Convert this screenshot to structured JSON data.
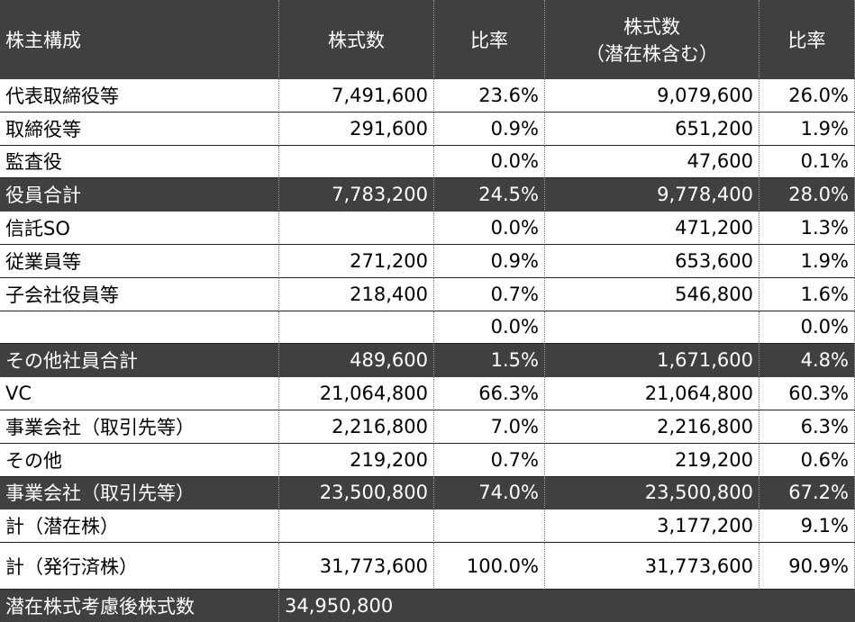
{
  "header": [
    "株主構成",
    "株式数",
    "比率",
    [
      "株式数",
      "（潜在株含む）"
    ],
    "比率"
  ],
  "rows": [
    {
      "cells": [
        "代表取締役等",
        "7,491,600",
        "23.6%",
        "9,079,600",
        "26.0%"
      ],
      "total": false
    },
    {
      "cells": [
        "取締役等",
        "291,600",
        "0.9%",
        "651,200",
        "1.9%"
      ],
      "total": false
    },
    {
      "cells": [
        "監査役",
        null,
        "0.0%",
        "47,600",
        "0.1%"
      ],
      "total": false
    },
    {
      "cells": [
        "役員合計",
        "7,783,200",
        "24.5%",
        "9,778,400",
        "28.0%"
      ],
      "total": true
    },
    {
      "cells": [
        "信託SO",
        null,
        "0.0%",
        "471,200",
        "1.3%"
      ],
      "total": false
    },
    {
      "cells": [
        "従業員等",
        "271,200",
        "0.9%",
        "653,600",
        "1.9%"
      ],
      "total": false
    },
    {
      "cells": [
        "子会社役員等",
        "218,400",
        "0.7%",
        "546,800",
        "1.6%"
      ],
      "total": false
    },
    {
      "cells": [
        null,
        null,
        "0.0%",
        null,
        "0.0%"
      ],
      "total": false
    },
    {
      "cells": [
        "その他社員合計",
        "489,600",
        "1.5%",
        "1,671,600",
        "4.8%"
      ],
      "total": true
    },
    {
      "cells": [
        "VC",
        "21,064,800",
        "66.3%",
        "21,064,800",
        "60.3%"
      ],
      "total": false
    },
    {
      "cells": [
        "事業会社（取引先等）",
        "2,216,800",
        "7.0%",
        "2,216,800",
        "6.3%"
      ],
      "total": false
    },
    {
      "cells": [
        "その他",
        "219,200",
        "0.7%",
        "219,200",
        "0.6%"
      ],
      "total": false
    },
    {
      "cells": [
        "事業会社（取引先等）",
        "23,500,800",
        "74.0%",
        "23,500,800",
        "67.2%"
      ],
      "total": true
    },
    {
      "cells": [
        "計（潜在株）",
        null,
        null,
        "3,177,200",
        "9.1%"
      ],
      "total": false
    },
    {
      "cells": [
        "計（発行済株）",
        "31,773,600",
        "100.0%",
        "31,773,600",
        "90.9%"
      ],
      "total": false
    }
  ],
  "footer": {
    "label": "潜在株式考慮後株式数",
    "value": "34,950,800"
  }
}
